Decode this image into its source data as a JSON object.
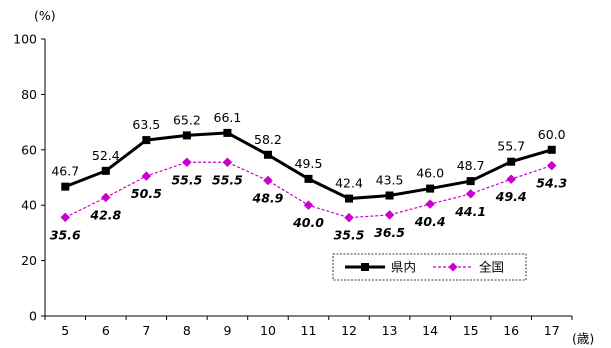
{
  "chart_data": {
    "type": "line",
    "ylabel": "(%)",
    "xlabel": "(歳)",
    "ylim": [
      0,
      100
    ],
    "yticks": [
      0,
      20,
      40,
      60,
      80,
      100
    ],
    "categories": [
      "5",
      "6",
      "7",
      "8",
      "9",
      "10",
      "11",
      "12",
      "13",
      "14",
      "15",
      "16",
      "17"
    ],
    "grid": false,
    "legend_position": "bottom-right",
    "series": [
      {
        "name": "県内",
        "color": "#000000",
        "marker": "square",
        "values": [
          46.7,
          52.4,
          63.5,
          65.2,
          66.1,
          58.2,
          49.5,
          42.4,
          43.5,
          46.0,
          48.7,
          55.7,
          60.0
        ],
        "labels": [
          "46.7",
          "52.4",
          "63.5",
          "65.2",
          "66.1",
          "58.2",
          "49.5",
          "42.4",
          "43.5",
          "46.0",
          "48.7",
          "55.7",
          "60.0"
        ]
      },
      {
        "name": "全国",
        "color": "#cc00cc",
        "marker": "diamond",
        "dashed": true,
        "values": [
          35.6,
          42.8,
          50.5,
          55.5,
          55.5,
          48.9,
          40.0,
          35.5,
          36.5,
          40.4,
          44.1,
          49.4,
          54.3
        ],
        "labels": [
          "35.6",
          "42.8",
          "50.5",
          "55.5",
          "55.5",
          "48.9",
          "40.0",
          "35.5",
          "36.5",
          "40.4",
          "44.1",
          "49.4",
          "54.3"
        ]
      }
    ]
  }
}
